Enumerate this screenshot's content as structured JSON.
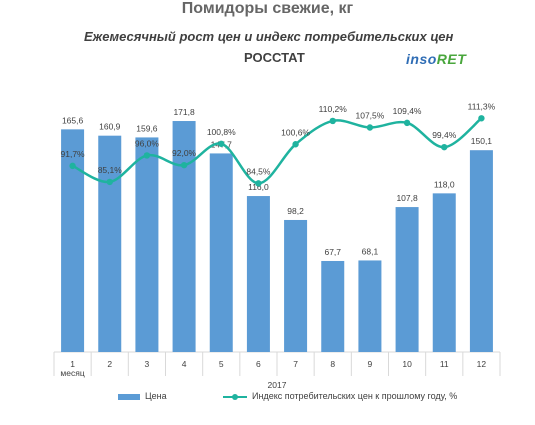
{
  "header": {
    "title": "Помидоры свежие, кг",
    "subtitle": "Ежемесячный рост цен и индекс потребительских цен",
    "source": "РОССТАТ",
    "logo_part1": "inso",
    "logo_part2": "RET"
  },
  "colors": {
    "bar": "#5b9bd5",
    "line": "#1fb39f",
    "logo_blue": "#2f6db5",
    "logo_green": "#49a63c"
  },
  "chart_data": {
    "type": "bar",
    "categories": [
      "1",
      "2",
      "3",
      "4",
      "5",
      "6",
      "7",
      "8",
      "9",
      "10",
      "11",
      "12"
    ],
    "first_tick_extra": "месяц",
    "xlabel": "2017",
    "series": [
      {
        "name": "Цена",
        "type": "bar",
        "values": [
          165.6,
          160.9,
          159.6,
          171.8,
          147.7,
          116.0,
          98.2,
          67.7,
          68.1,
          107.8,
          118.0,
          150.1
        ],
        "labels": [
          "165,6",
          "160,9",
          "159,6",
          "171,8",
          "147,7",
          "116,0",
          "98,2",
          "67,7",
          "68,1",
          "107,8",
          "118,0",
          "150,1"
        ],
        "ylim": [
          0,
          180
        ]
      },
      {
        "name": "Индекс потребительских цен к прошлому году, %",
        "type": "line",
        "values": [
          91.7,
          85.1,
          96.0,
          92.0,
          100.8,
          84.5,
          100.6,
          110.2,
          107.5,
          109.4,
          99.4,
          111.3
        ],
        "labels": [
          "91,7%",
          "85,1%",
          "96,0%",
          "92,0%",
          "100,8%",
          "84,5%",
          "100,6%",
          "110,2%",
          "107,5%",
          "109,4%",
          "99,4%",
          "111,3%"
        ],
        "ylim": [
          55,
          125
        ]
      }
    ],
    "legend_position": "bottom",
    "grid": false
  }
}
